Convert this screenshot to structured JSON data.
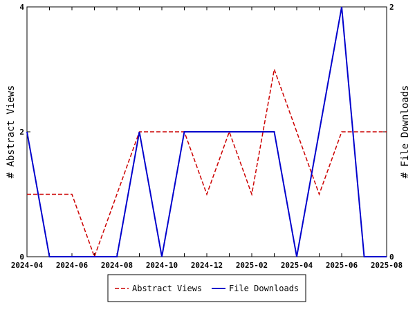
{
  "chart_data": {
    "type": "line",
    "title": "",
    "x": [
      "2024-04",
      "2024-05",
      "2024-06",
      "2024-07",
      "2024-08",
      "2024-09",
      "2024-10",
      "2024-11",
      "2024-12",
      "2025-01",
      "2025-02",
      "2025-03",
      "2025-04",
      "2025-05",
      "2025-06",
      "2025-07",
      "2025-08"
    ],
    "x_tick_labels": [
      "2024-04",
      "2024-06",
      "2024-08",
      "2024-10",
      "2024-12",
      "2025-02",
      "2025-04",
      "2025-06",
      "2025-08"
    ],
    "left_axis": {
      "label": "# Abstract Views",
      "ylim": [
        0,
        4
      ],
      "ticks": [
        "0",
        "2",
        "4"
      ]
    },
    "right_axis": {
      "label": "# File Downloads",
      "ylim": [
        0,
        2
      ],
      "ticks": [
        "0",
        "1",
        "2"
      ]
    },
    "series": [
      {
        "name": "Abstract Views",
        "axis": "left",
        "color": "#cc0000",
        "dash": "dashed",
        "values": [
          1,
          1,
          1,
          0,
          1,
          2,
          2,
          2,
          1,
          2,
          1,
          3,
          2,
          1,
          2,
          2,
          2
        ]
      },
      {
        "name": "File Downloads",
        "axis": "right",
        "color": "#0000cc",
        "dash": "solid",
        "values": [
          1,
          0,
          0,
          0,
          0,
          1,
          0,
          1,
          1,
          1,
          1,
          1,
          0,
          1,
          2,
          0,
          0
        ]
      }
    ],
    "grid": false,
    "legend": "bottom"
  }
}
